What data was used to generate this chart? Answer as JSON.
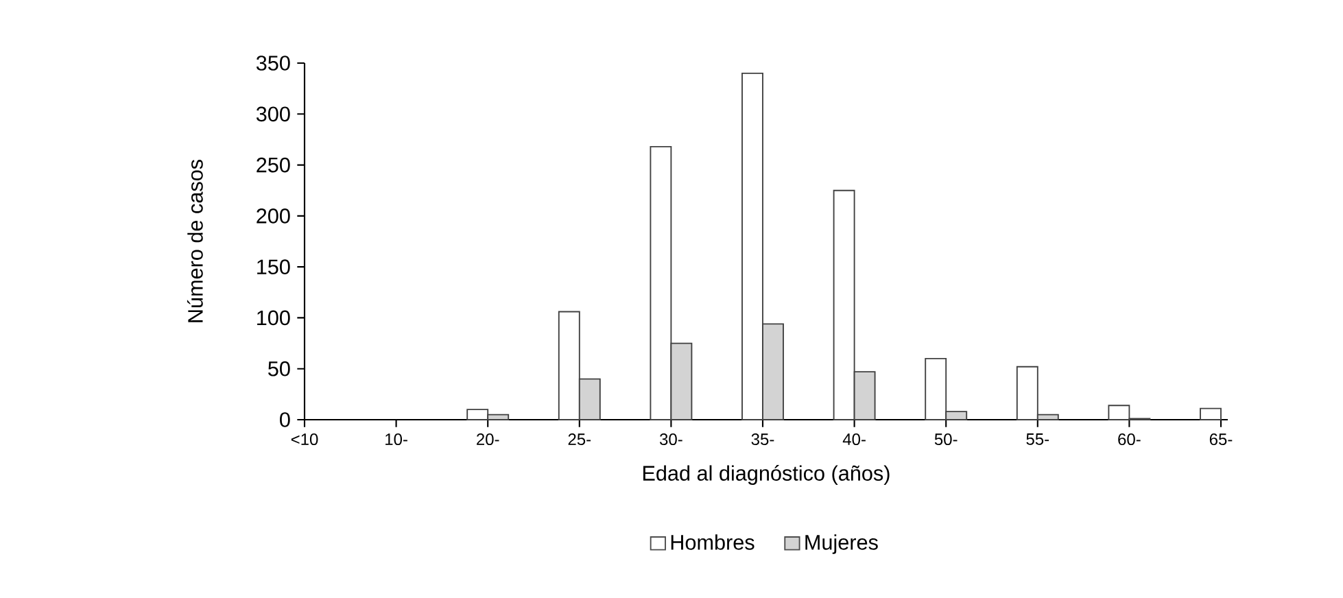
{
  "chart_data": {
    "type": "bar",
    "xlabel": "Edad al diagnóstico (años)",
    "ylabel": "Número de casos",
    "categories": [
      "<10",
      "10-",
      "20-",
      "25-",
      "30-",
      "35-",
      "40-",
      "50-",
      "55-",
      "60-",
      "65-"
    ],
    "series": [
      {
        "name": "Hombres",
        "color": "#ffffff",
        "values": [
          0,
          0,
          10,
          106,
          268,
          340,
          225,
          60,
          52,
          14,
          11
        ]
      },
      {
        "name": "Mujeres",
        "color": "#d3d3d3",
        "values": [
          0,
          0,
          5,
          40,
          75,
          94,
          47,
          8,
          5,
          1,
          0
        ]
      }
    ],
    "ylim": [
      0,
      350
    ],
    "yticks": [
      0,
      50,
      100,
      150,
      200,
      250,
      300,
      350
    ],
    "grid": false,
    "legend": "bottom"
  }
}
